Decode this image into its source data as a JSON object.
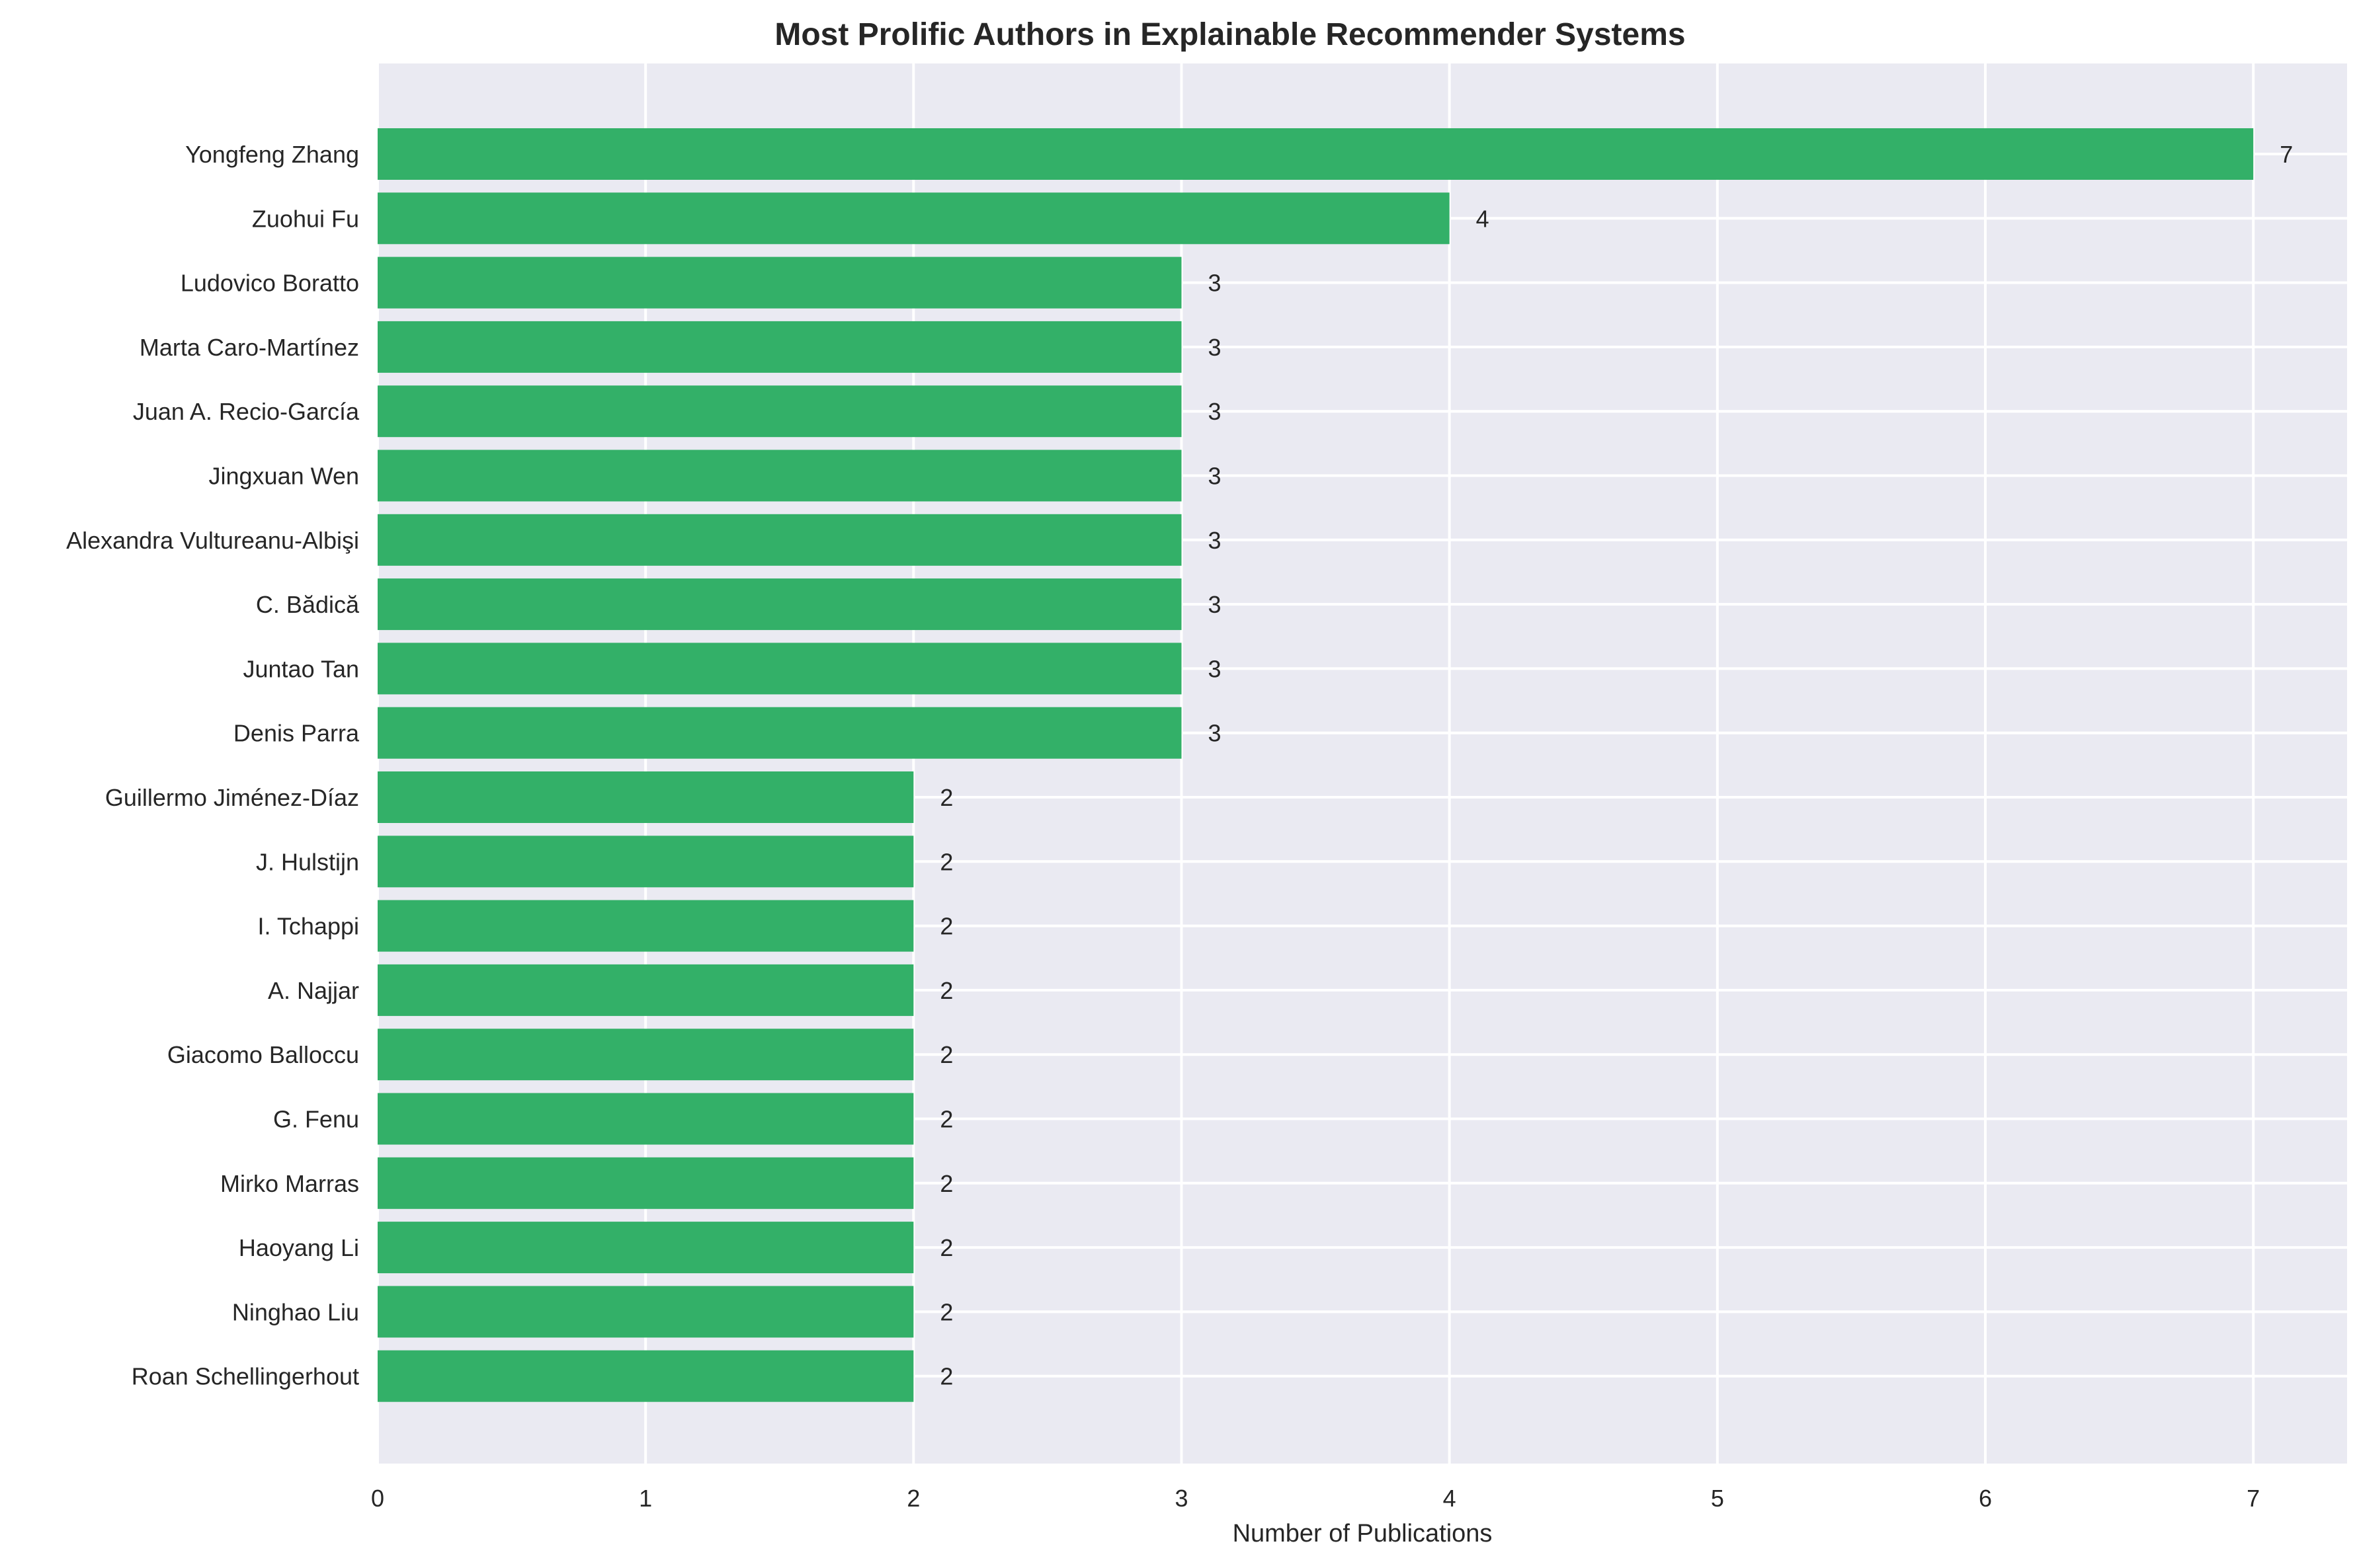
{
  "chart_data": {
    "type": "bar",
    "orientation": "horizontal",
    "title": "Most Prolific Authors in Explainable Recommender Systems",
    "xlabel": "Number of Publications",
    "ylabel": "",
    "xlim": [
      0,
      7.35
    ],
    "xticks": [
      0,
      1,
      2,
      3,
      4,
      5,
      6,
      7
    ],
    "grid": true,
    "bar_color": "#33b068",
    "background_color": "#eaeaf2",
    "categories": [
      "Yongfeng Zhang",
      "Zuohui Fu",
      "Ludovico Boratto",
      "Marta Caro-Martínez",
      "Juan A. Recio-García",
      "Jingxuan Wen",
      "Alexandra Vultureanu-Albişi",
      "C. Bădică",
      "Juntao Tan",
      "Denis Parra",
      "Guillermo Jiménez-Díaz",
      "J. Hulstijn",
      "I. Tchappi",
      "A. Najjar",
      "Giacomo Balloccu",
      "G. Fenu",
      "Mirko Marras",
      "Haoyang Li",
      "Ninghao Liu",
      "Roan Schellingerhout"
    ],
    "values": [
      7,
      4,
      3,
      3,
      3,
      3,
      3,
      3,
      3,
      3,
      2,
      2,
      2,
      2,
      2,
      2,
      2,
      2,
      2,
      2
    ],
    "data_labels": [
      "7",
      "4",
      "3",
      "3",
      "3",
      "3",
      "3",
      "3",
      "3",
      "3",
      "2",
      "2",
      "2",
      "2",
      "2",
      "2",
      "2",
      "2",
      "2",
      "2"
    ]
  }
}
